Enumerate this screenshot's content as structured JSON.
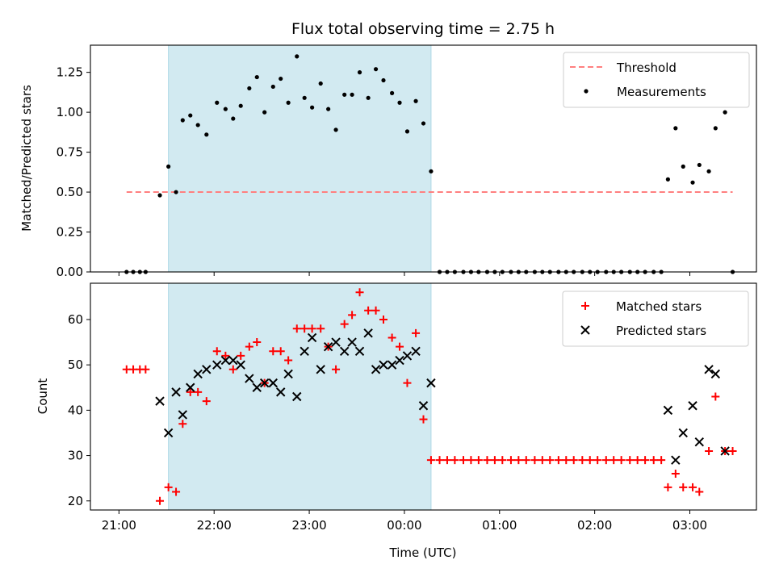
{
  "chart_data": {
    "title": "Flux total observing time = 2.75 h",
    "xlabel": "Time (UTC)",
    "x_unit": "hours (UTC)",
    "xlim": [
      20.7,
      27.7
    ],
    "x_ticks": [
      {
        "value": 21,
        "label": "21:00"
      },
      {
        "value": 22,
        "label": "22:00"
      },
      {
        "value": 23,
        "label": "23:00"
      },
      {
        "value": 24,
        "label": "00:00"
      },
      {
        "value": 25,
        "label": "01:00"
      },
      {
        "value": 26,
        "label": "02:00"
      },
      {
        "value": 27,
        "label": "03:00"
      }
    ],
    "observing_window": {
      "start": 21.52,
      "end": 24.28,
      "color": "#add8e6"
    },
    "panels": [
      {
        "type": "scatter",
        "ylabel": "Matched/Predicted stars",
        "ylim": [
          0,
          1.42
        ],
        "y_ticks": [
          {
            "value": 0,
            "label": "0.00"
          },
          {
            "value": 0.25,
            "label": "0.25"
          },
          {
            "value": 0.5,
            "label": "0.50"
          },
          {
            "value": 0.75,
            "label": "0.75"
          },
          {
            "value": 1.0,
            "label": "1.00"
          },
          {
            "value": 1.25,
            "label": "1.25"
          }
        ],
        "grid": false,
        "legend_position": "top-right",
        "threshold": {
          "name": "Threshold",
          "value": 0.5,
          "x_range": [
            21.08,
            27.45
          ],
          "color": "#ff7f7f"
        },
        "series": [
          {
            "name": "Measurements",
            "marker": "dot",
            "color": "#000000",
            "points": [
              [
                21.08,
                0
              ],
              [
                21.15,
                0
              ],
              [
                21.22,
                0
              ],
              [
                21.28,
                0
              ],
              [
                21.43,
                0.48
              ],
              [
                21.52,
                0.66
              ],
              [
                21.6,
                0.5
              ],
              [
                21.67,
                0.95
              ],
              [
                21.75,
                0.98
              ],
              [
                21.83,
                0.92
              ],
              [
                21.92,
                0.86
              ],
              [
                22.03,
                1.06
              ],
              [
                22.12,
                1.02
              ],
              [
                22.2,
                0.96
              ],
              [
                22.28,
                1.04
              ],
              [
                22.37,
                1.15
              ],
              [
                22.45,
                1.22
              ],
              [
                22.53,
                1.0
              ],
              [
                22.62,
                1.16
              ],
              [
                22.7,
                1.21
              ],
              [
                22.78,
                1.06
              ],
              [
                22.87,
                1.35
              ],
              [
                22.95,
                1.09
              ],
              [
                23.03,
                1.03
              ],
              [
                23.12,
                1.18
              ],
              [
                23.2,
                1.02
              ],
              [
                23.28,
                0.89
              ],
              [
                23.37,
                1.11
              ],
              [
                23.45,
                1.11
              ],
              [
                23.53,
                1.25
              ],
              [
                23.62,
                1.09
              ],
              [
                23.7,
                1.27
              ],
              [
                23.78,
                1.2
              ],
              [
                23.87,
                1.12
              ],
              [
                23.95,
                1.06
              ],
              [
                24.03,
                0.88
              ],
              [
                24.12,
                1.07
              ],
              [
                24.2,
                0.93
              ],
              [
                24.28,
                0.63
              ],
              [
                24.37,
                0
              ],
              [
                24.45,
                0
              ],
              [
                24.53,
                0
              ],
              [
                24.62,
                0
              ],
              [
                24.7,
                0
              ],
              [
                24.78,
                0
              ],
              [
                24.87,
                0
              ],
              [
                24.95,
                0
              ],
              [
                25.03,
                0
              ],
              [
                25.12,
                0
              ],
              [
                25.2,
                0
              ],
              [
                25.28,
                0
              ],
              [
                25.37,
                0
              ],
              [
                25.45,
                0
              ],
              [
                25.53,
                0
              ],
              [
                25.62,
                0
              ],
              [
                25.7,
                0
              ],
              [
                25.78,
                0
              ],
              [
                25.87,
                0
              ],
              [
                25.95,
                0
              ],
              [
                26.03,
                0
              ],
              [
                26.12,
                0
              ],
              [
                26.2,
                0
              ],
              [
                26.28,
                0
              ],
              [
                26.37,
                0
              ],
              [
                26.45,
                0
              ],
              [
                26.53,
                0
              ],
              [
                26.62,
                0
              ],
              [
                26.7,
                0
              ],
              [
                26.77,
                0.58
              ],
              [
                26.85,
                0.9
              ],
              [
                26.93,
                0.66
              ],
              [
                27.03,
                0.56
              ],
              [
                27.1,
                0.67
              ],
              [
                27.2,
                0.63
              ],
              [
                27.27,
                0.9
              ],
              [
                27.37,
                1.0
              ],
              [
                27.45,
                0
              ]
            ]
          }
        ]
      },
      {
        "type": "scatter",
        "xlabel": "Time (UTC)",
        "ylabel": "Count",
        "ylim": [
          18,
          68
        ],
        "y_ticks": [
          {
            "value": 20,
            "label": "20"
          },
          {
            "value": 30,
            "label": "30"
          },
          {
            "value": 40,
            "label": "40"
          },
          {
            "value": 50,
            "label": "50"
          },
          {
            "value": 60,
            "label": "60"
          }
        ],
        "grid": false,
        "legend_position": "top-right",
        "series": [
          {
            "name": "Matched stars",
            "marker": "plus",
            "color": "#ff0000",
            "points": [
              [
                21.08,
                49
              ],
              [
                21.15,
                49
              ],
              [
                21.22,
                49
              ],
              [
                21.28,
                49
              ],
              [
                21.43,
                20
              ],
              [
                21.52,
                23
              ],
              [
                21.6,
                22
              ],
              [
                21.67,
                37
              ],
              [
                21.75,
                44
              ],
              [
                21.83,
                44
              ],
              [
                21.92,
                42
              ],
              [
                22.03,
                53
              ],
              [
                22.12,
                52
              ],
              [
                22.2,
                49
              ],
              [
                22.28,
                52
              ],
              [
                22.37,
                54
              ],
              [
                22.45,
                55
              ],
              [
                22.53,
                46
              ],
              [
                22.62,
                53
              ],
              [
                22.7,
                53
              ],
              [
                22.78,
                51
              ],
              [
                22.87,
                58
              ],
              [
                22.95,
                58
              ],
              [
                23.03,
                58
              ],
              [
                23.12,
                58
              ],
              [
                23.2,
                54
              ],
              [
                23.28,
                49
              ],
              [
                23.37,
                59
              ],
              [
                23.45,
                61
              ],
              [
                23.53,
                66
              ],
              [
                23.62,
                62
              ],
              [
                23.7,
                62
              ],
              [
                23.78,
                60
              ],
              [
                23.87,
                56
              ],
              [
                23.95,
                54
              ],
              [
                24.03,
                46
              ],
              [
                24.12,
                57
              ],
              [
                24.2,
                38
              ],
              [
                24.28,
                29
              ],
              [
                24.37,
                29
              ],
              [
                24.45,
                29
              ],
              [
                24.53,
                29
              ],
              [
                24.62,
                29
              ],
              [
                24.7,
                29
              ],
              [
                24.78,
                29
              ],
              [
                24.87,
                29
              ],
              [
                24.95,
                29
              ],
              [
                25.03,
                29
              ],
              [
                25.12,
                29
              ],
              [
                25.2,
                29
              ],
              [
                25.28,
                29
              ],
              [
                25.37,
                29
              ],
              [
                25.45,
                29
              ],
              [
                25.53,
                29
              ],
              [
                25.62,
                29
              ],
              [
                25.7,
                29
              ],
              [
                25.78,
                29
              ],
              [
                25.87,
                29
              ],
              [
                25.95,
                29
              ],
              [
                26.03,
                29
              ],
              [
                26.12,
                29
              ],
              [
                26.2,
                29
              ],
              [
                26.28,
                29
              ],
              [
                26.37,
                29
              ],
              [
                26.45,
                29
              ],
              [
                26.53,
                29
              ],
              [
                26.62,
                29
              ],
              [
                26.7,
                29
              ],
              [
                26.77,
                23
              ],
              [
                26.85,
                26
              ],
              [
                26.93,
                23
              ],
              [
                27.03,
                23
              ],
              [
                27.1,
                22
              ],
              [
                27.2,
                31
              ],
              [
                27.27,
                43
              ],
              [
                27.37,
                31
              ],
              [
                27.45,
                31
              ]
            ]
          },
          {
            "name": "Predicted stars",
            "marker": "x",
            "color": "#000000",
            "points": [
              [
                21.43,
                42
              ],
              [
                21.52,
                35
              ],
              [
                21.6,
                44
              ],
              [
                21.67,
                39
              ],
              [
                21.75,
                45
              ],
              [
                21.83,
                48
              ],
              [
                21.92,
                49
              ],
              [
                22.03,
                50
              ],
              [
                22.12,
                51
              ],
              [
                22.2,
                51
              ],
              [
                22.28,
                50
              ],
              [
                22.37,
                47
              ],
              [
                22.45,
                45
              ],
              [
                22.53,
                46
              ],
              [
                22.62,
                46
              ],
              [
                22.7,
                44
              ],
              [
                22.78,
                48
              ],
              [
                22.87,
                43
              ],
              [
                22.95,
                53
              ],
              [
                23.03,
                56
              ],
              [
                23.12,
                49
              ],
              [
                23.2,
                54
              ],
              [
                23.28,
                55
              ],
              [
                23.37,
                53
              ],
              [
                23.45,
                55
              ],
              [
                23.53,
                53
              ],
              [
                23.62,
                57
              ],
              [
                23.7,
                49
              ],
              [
                23.78,
                50
              ],
              [
                23.87,
                50
              ],
              [
                23.95,
                51
              ],
              [
                24.03,
                52
              ],
              [
                24.12,
                53
              ],
              [
                24.2,
                41
              ],
              [
                24.28,
                46
              ],
              [
                26.77,
                40
              ],
              [
                26.85,
                29
              ],
              [
                26.93,
                35
              ],
              [
                27.03,
                41
              ],
              [
                27.1,
                33
              ],
              [
                27.2,
                49
              ],
              [
                27.27,
                48
              ],
              [
                27.37,
                31
              ]
            ]
          }
        ]
      }
    ]
  }
}
